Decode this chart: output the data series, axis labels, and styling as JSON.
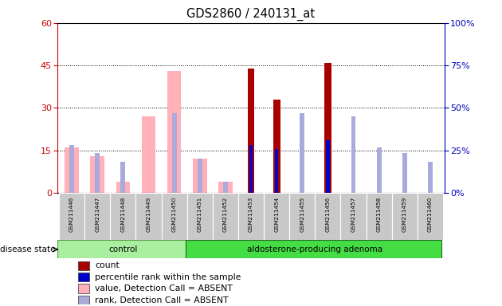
{
  "title": "GDS2860 / 240131_at",
  "samples": [
    "GSM211446",
    "GSM211447",
    "GSM211448",
    "GSM211449",
    "GSM211450",
    "GSM211451",
    "GSM211452",
    "GSM211453",
    "GSM211454",
    "GSM211455",
    "GSM211456",
    "GSM211457",
    "GSM211458",
    "GSM211459",
    "GSM211460"
  ],
  "control_count": 5,
  "value_absent": [
    16,
    13,
    4,
    27,
    43,
    12,
    4,
    null,
    null,
    null,
    null,
    null,
    null,
    null,
    null
  ],
  "rank_absent": [
    17,
    14,
    11,
    null,
    28,
    12,
    4,
    null,
    null,
    28,
    null,
    27,
    16,
    14,
    11
  ],
  "count": [
    null,
    null,
    null,
    null,
    null,
    null,
    null,
    44,
    33,
    null,
    46,
    null,
    null,
    null,
    null
  ],
  "percentile": [
    null,
    null,
    null,
    null,
    null,
    null,
    null,
    28,
    26,
    null,
    31,
    null,
    null,
    null,
    null
  ],
  "ylim_left": [
    0,
    60
  ],
  "ylim_right": [
    0,
    100
  ],
  "yticks_left": [
    0,
    15,
    30,
    45,
    60
  ],
  "yticks_right": [
    0,
    25,
    50,
    75,
    100
  ],
  "color_value_absent": "#FFB0B8",
  "color_rank_absent": "#AAAADD",
  "color_count": "#AA0000",
  "color_percentile": "#0000CC",
  "left_axis_color": "#CC0000",
  "right_axis_color": "#0000BB",
  "bg_control": "#AAEEA0",
  "bg_adenoma": "#44DD44"
}
